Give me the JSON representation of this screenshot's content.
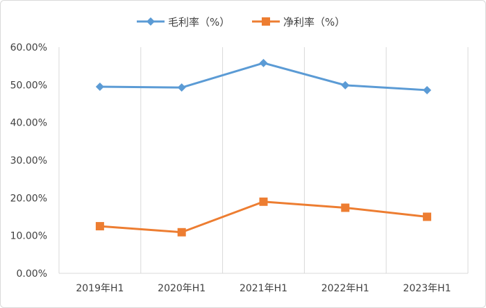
{
  "chart_data": {
    "type": "line",
    "categories": [
      "2019年H1",
      "2020年H1",
      "2021年H1",
      "2022年H1",
      "2023年H1"
    ],
    "series": [
      {
        "name": "毛利率（%）",
        "color": "#5B9BD5",
        "marker": "diamond",
        "values": [
          49.5,
          49.3,
          55.8,
          49.9,
          48.6
        ]
      },
      {
        "name": "净利率（%）",
        "color": "#ED7D31",
        "marker": "square",
        "values": [
          12.5,
          10.9,
          19.0,
          17.4,
          15.0
        ]
      }
    ],
    "yticks": [
      "0.00%",
      "10.00%",
      "20.00%",
      "30.00%",
      "40.00%",
      "50.00%",
      "60.00%"
    ],
    "ylim": [
      0,
      60
    ],
    "grid": "vertical",
    "legend": "top-center"
  }
}
